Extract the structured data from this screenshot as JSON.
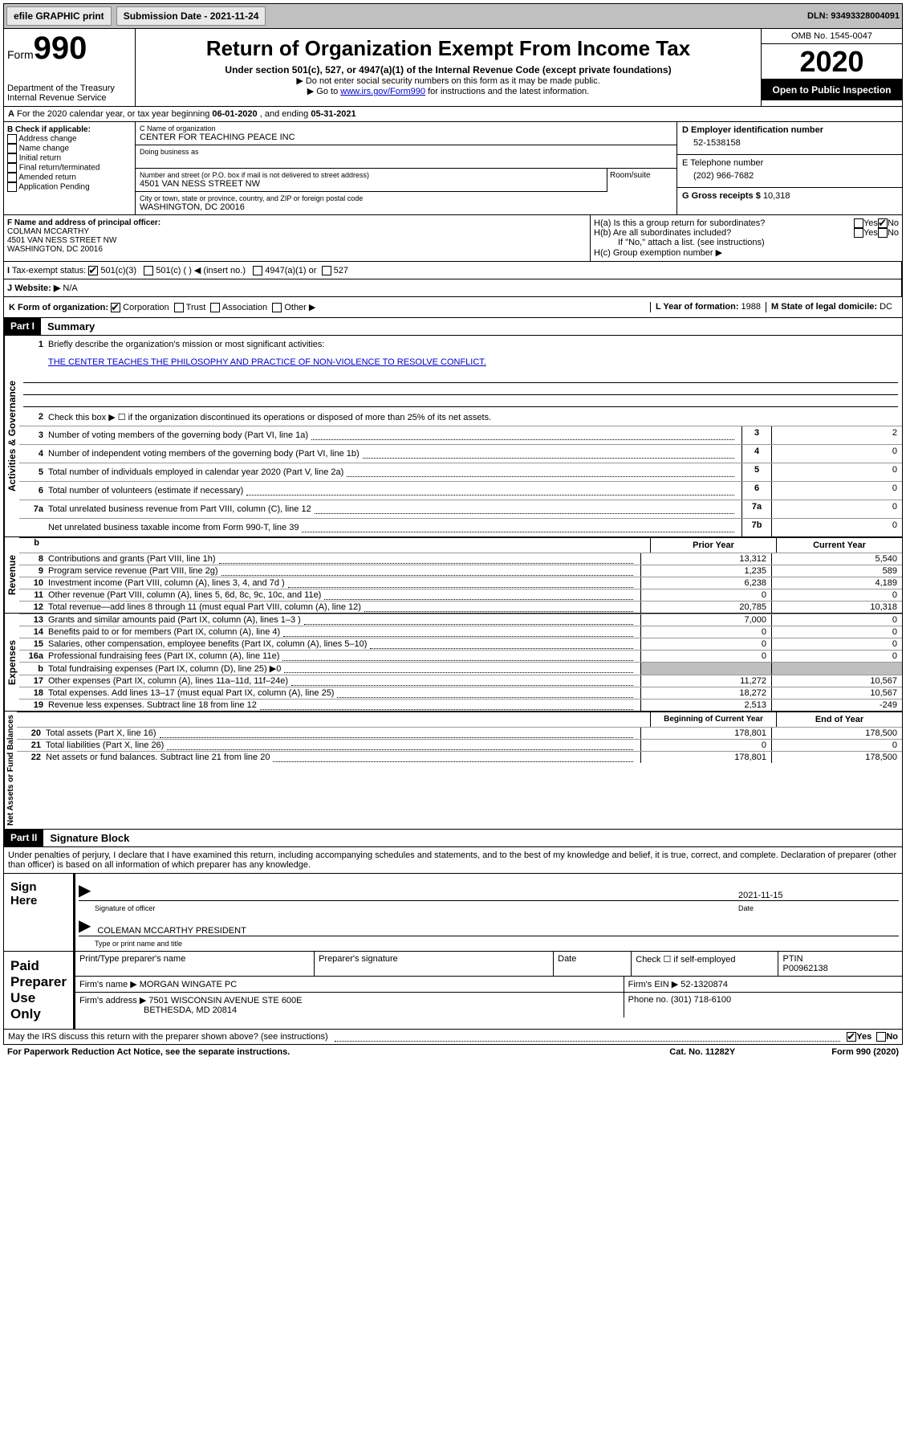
{
  "topbar": {
    "efile": "efile GRAPHIC print",
    "subdate_lbl": "Submission Date - ",
    "subdate": "2021-11-24",
    "dln_lbl": "DLN: ",
    "dln": "93493328004091"
  },
  "hdr": {
    "form": "Form",
    "num": "990",
    "dept": "Department of the Treasury\nInternal Revenue Service",
    "title": "Return of Organization Exempt From Income Tax",
    "sub": "Under section 501(c), 527, or 4947(a)(1) of the Internal Revenue Code (except private foundations)",
    "inst1": "Do not enter social security numbers on this form as it may be made public.",
    "inst2_a": "Go to ",
    "inst2_link": "www.irs.gov/Form990",
    "inst2_b": " for instructions and the latest information.",
    "omb": "OMB No. 1545-0047",
    "year": "2020",
    "pub": "Open to Public Inspection"
  },
  "a": {
    "txt_a": "For the 2020 calendar year, or tax year beginning ",
    "beg": "06-01-2020",
    "txt_b": " , and ending ",
    "end": "05-31-2021"
  },
  "b": {
    "hdr": "B Check if applicable:",
    "opts": [
      "Address change",
      "Name change",
      "Initial return",
      "Final return/terminated",
      "Amended return",
      "Application Pending"
    ]
  },
  "c": {
    "name_lbl": "C Name of organization",
    "name": "CENTER FOR TEACHING PEACE INC",
    "dba_lbl": "Doing business as",
    "addr_lbl": "Number and street (or P.O. box if mail is not delivered to street address)",
    "addr": "4501 VAN NESS STREET NW",
    "room_lbl": "Room/suite",
    "city_lbl": "City or town, state or province, country, and ZIP or foreign postal code",
    "city": "WASHINGTON, DC  20016"
  },
  "d": {
    "ein_lbl": "D Employer identification number",
    "ein": "52-1538158",
    "tel_lbl": "E Telephone number",
    "tel": "(202) 966-7682",
    "gross_lbl": "G Gross receipts $ ",
    "gross": "10,318"
  },
  "f": {
    "lbl": "F Name and address of principal officer:",
    "name": "COLMAN MCCARTHY",
    "addr1": "4501 VAN NESS STREET NW",
    "addr2": "WASHINGTON, DC  20016"
  },
  "h": {
    "a": "H(a)  Is this a group return for subordinates?",
    "b": "H(b)  Are all subordinates included?",
    "note": "If \"No,\" attach a list. (see instructions)",
    "c": "H(c)  Group exemption number ▶",
    "yes": "Yes",
    "no": "No"
  },
  "i": {
    "lbl": "Tax-exempt status:",
    "o1": "501(c)(3)",
    "o2": "501(c) (  ) ◀ (insert no.)",
    "o3": "4947(a)(1) or",
    "o4": "527"
  },
  "j": {
    "lbl": "Website: ▶",
    "val": "N/A"
  },
  "k": {
    "lbl": "K Form of organization:",
    "o1": "Corporation",
    "o2": "Trust",
    "o3": "Association",
    "o4": "Other ▶",
    "l": "L Year of formation: ",
    "lval": "1988",
    "m": "M State of legal domicile: ",
    "mval": "DC"
  },
  "p1": {
    "part": "Part I",
    "title": "Summary",
    "side1": "Activities & Governance",
    "side2": "Revenue",
    "side3": "Expenses",
    "side4": "Net Assets or Fund Balances",
    "q1": "Briefly describe the organization's mission or most significant activities:",
    "q1a": "THE CENTER TEACHES THE PHILOSOPHY AND PRACTICE OF NON-VIOLENCE TO RESOLVE CONFLICT.",
    "q2": "Check this box ▶ ☐ if the organization discontinued its operations or disposed of more than 25% of its net assets.",
    "rows_gov": [
      {
        "n": "3",
        "t": "Number of voting members of the governing body (Part VI, line 1a)",
        "bn": "3",
        "bv": "2"
      },
      {
        "n": "4",
        "t": "Number of independent voting members of the governing body (Part VI, line 1b)",
        "bn": "4",
        "bv": "0"
      },
      {
        "n": "5",
        "t": "Total number of individuals employed in calendar year 2020 (Part V, line 2a)",
        "bn": "5",
        "bv": "0"
      },
      {
        "n": "6",
        "t": "Total number of volunteers (estimate if necessary)",
        "bn": "6",
        "bv": "0"
      },
      {
        "n": "7a",
        "t": "Total unrelated business revenue from Part VIII, column (C), line 12",
        "bn": "7a",
        "bv": "0"
      },
      {
        "n": "",
        "t": "Net unrelated business taxable income from Form 990-T, line 39",
        "bn": "7b",
        "bv": "0"
      }
    ],
    "py": "Prior Year",
    "cy": "Current Year",
    "rev": [
      {
        "n": "8",
        "t": "Contributions and grants (Part VIII, line 1h)",
        "p": "13,312",
        "c": "5,540"
      },
      {
        "n": "9",
        "t": "Program service revenue (Part VIII, line 2g)",
        "p": "1,235",
        "c": "589"
      },
      {
        "n": "10",
        "t": "Investment income (Part VIII, column (A), lines 3, 4, and 7d )",
        "p": "6,238",
        "c": "4,189"
      },
      {
        "n": "11",
        "t": "Other revenue (Part VIII, column (A), lines 5, 6d, 8c, 9c, 10c, and 11e)",
        "p": "0",
        "c": "0"
      },
      {
        "n": "12",
        "t": "Total revenue—add lines 8 through 11 (must equal Part VIII, column (A), line 12)",
        "p": "20,785",
        "c": "10,318"
      }
    ],
    "exp": [
      {
        "n": "13",
        "t": "Grants and similar amounts paid (Part IX, column (A), lines 1–3 )",
        "p": "7,000",
        "c": "0"
      },
      {
        "n": "14",
        "t": "Benefits paid to or for members (Part IX, column (A), line 4)",
        "p": "0",
        "c": "0"
      },
      {
        "n": "15",
        "t": "Salaries, other compensation, employee benefits (Part IX, column (A), lines 5–10)",
        "p": "0",
        "c": "0"
      },
      {
        "n": "16a",
        "t": "Professional fundraising fees (Part IX, column (A), line 11e)",
        "p": "0",
        "c": "0"
      },
      {
        "n": "b",
        "t": "Total fundraising expenses (Part IX, column (D), line 25) ▶0",
        "p": "",
        "c": "",
        "shade": true
      },
      {
        "n": "17",
        "t": "Other expenses (Part IX, column (A), lines 11a–11d, 11f–24e)",
        "p": "11,272",
        "c": "10,567"
      },
      {
        "n": "18",
        "t": "Total expenses. Add lines 13–17 (must equal Part IX, column (A), line 25)",
        "p": "18,272",
        "c": "10,567"
      },
      {
        "n": "19",
        "t": "Revenue less expenses. Subtract line 18 from line 12",
        "p": "2,513",
        "c": "-249"
      }
    ],
    "bcy": "Beginning of Current Year",
    "ecy": "End of Year",
    "net": [
      {
        "n": "20",
        "t": "Total assets (Part X, line 16)",
        "p": "178,801",
        "c": "178,500"
      },
      {
        "n": "21",
        "t": "Total liabilities (Part X, line 26)",
        "p": "0",
        "c": "0"
      },
      {
        "n": "22",
        "t": "Net assets or fund balances. Subtract line 21 from line 20",
        "p": "178,801",
        "c": "178,500"
      }
    ]
  },
  "p2": {
    "part": "Part II",
    "title": "Signature Block",
    "decl": "Under penalties of perjury, I declare that I have examined this return, including accompanying schedules and statements, and to the best of my knowledge and belief, it is true, correct, and complete. Declaration of preparer (other than officer) is based on all information of which preparer has any knowledge."
  },
  "sign": {
    "lbl": "Sign Here",
    "sig_of": "Signature of officer",
    "date_lbl": "Date",
    "date": "2021-11-15",
    "name": "COLEMAN MCCARTHY PRESIDENT",
    "name_lbl": "Type or print name and title"
  },
  "prep": {
    "lbl": "Paid Preparer Use Only",
    "pn": "Print/Type preparer's name",
    "ps": "Preparer's signature",
    "pd": "Date",
    "chk": "Check ☐ if self-employed",
    "ptin_lbl": "PTIN",
    "ptin": "P00962138",
    "firm_lbl": "Firm's name   ▶",
    "firm": "MORGAN WINGATE PC",
    "fein_lbl": "Firm's EIN ▶",
    "fein": "52-1320874",
    "faddr_lbl": "Firm's address ▶",
    "faddr1": "7501 WISCONSIN AVENUE STE 600E",
    "faddr2": "BETHESDA, MD  20814",
    "phone_lbl": "Phone no. ",
    "phone": "(301) 718-6100"
  },
  "foot": {
    "q": "May the IRS discuss this return with the preparer shown above? (see instructions)",
    "yes": "Yes",
    "no": "No",
    "pra": "For Paperwork Reduction Act Notice, see the separate instructions.",
    "cat": "Cat. No. 11282Y",
    "form": "Form 990 (2020)"
  }
}
